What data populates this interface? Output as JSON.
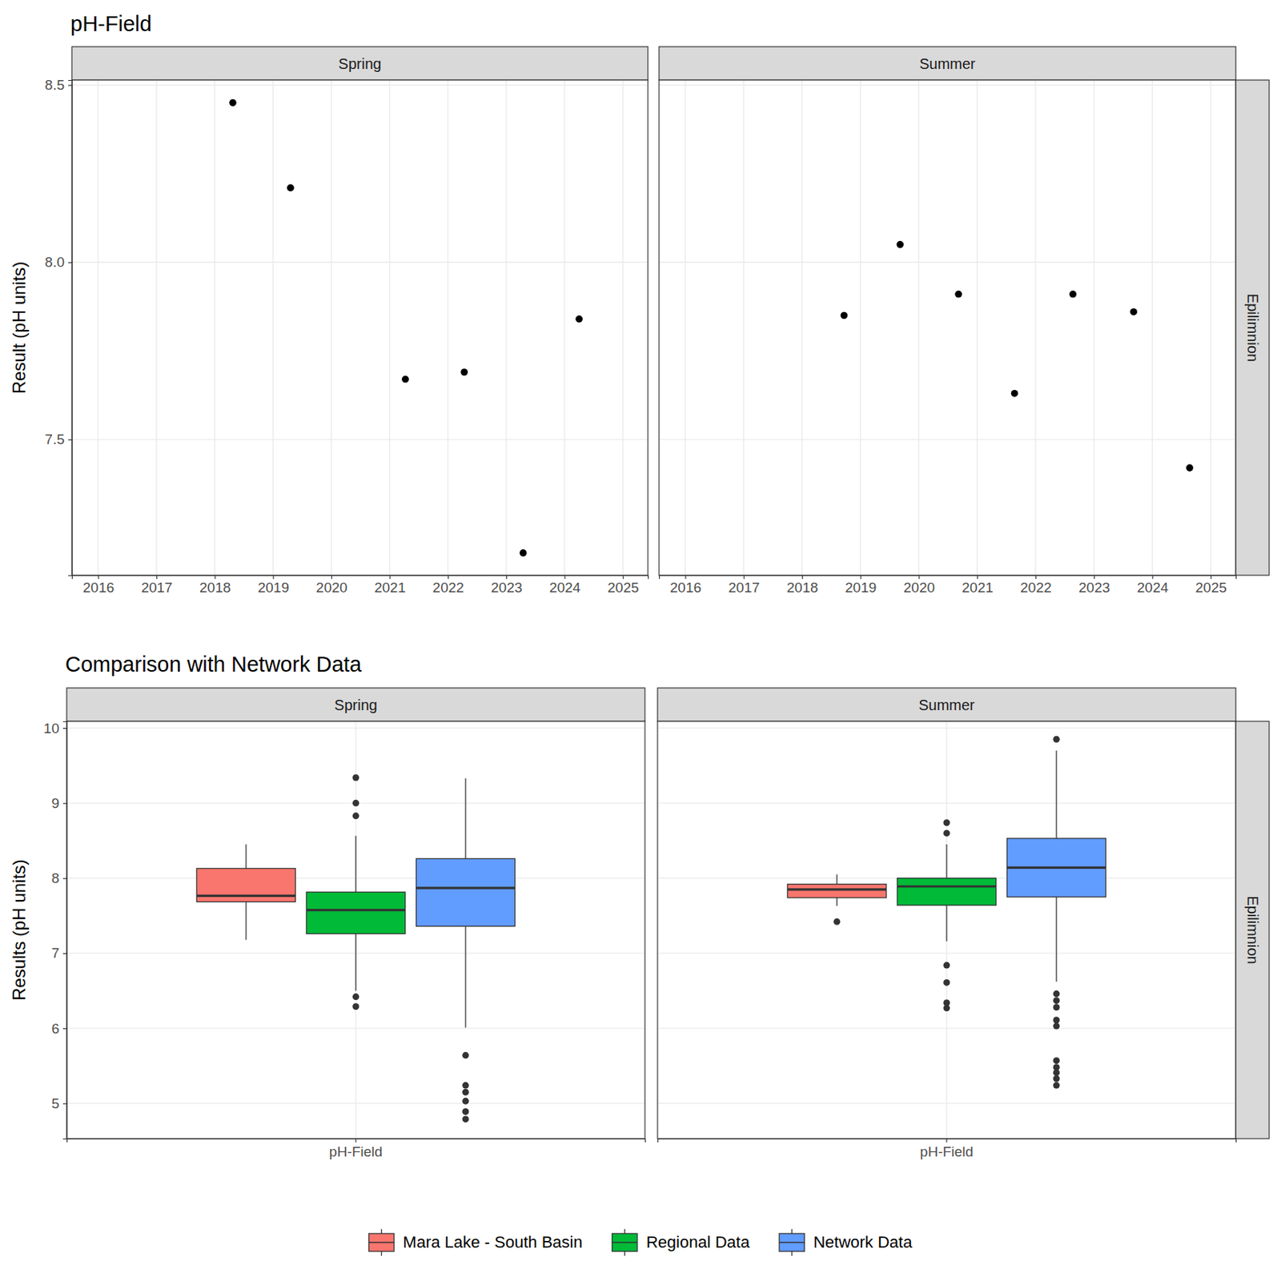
{
  "chart_data": [
    {
      "type": "scatter",
      "title": "pH-Field",
      "y_label": "Result (pH units)",
      "strip": "Epilimnion",
      "color": "#000000",
      "marker": "circle",
      "grid": true,
      "xlim": [
        2015.55,
        2025.43
      ],
      "xticks": [
        2016,
        2017,
        2018,
        2019,
        2020,
        2021,
        2022,
        2023,
        2024,
        2025
      ],
      "ylim": [
        7.117,
        8.514
      ],
      "yticks": [
        7.5,
        {
          "value": 8,
          "label": "8.0"
        },
        8.5
      ],
      "panels": [
        {
          "name": "Spring",
          "x": [
            2018.31,
            2019.3,
            2021.27,
            2022.28,
            2023.29,
            2024.25
          ],
          "values": [
            8.45,
            8.21,
            7.67,
            7.69,
            7.18,
            7.84
          ]
        },
        {
          "name": "Summer",
          "x": [
            2018.72,
            2019.68,
            2020.68,
            2021.64,
            2022.64,
            2023.68,
            2024.64
          ],
          "values": [
            7.85,
            8.05,
            7.91,
            7.63,
            7.91,
            7.86,
            7.42
          ]
        }
      ]
    },
    {
      "type": "box",
      "title": "Comparison with Network Data",
      "y_label": "Results (pH units)",
      "strip": "Epilimnion",
      "grid": true,
      "legend": "bottom",
      "categories": [
        "pH-Field"
      ],
      "ylim": [
        4.53,
        10.09
      ],
      "yticks": [
        5,
        6,
        7,
        8,
        9,
        10
      ],
      "series": [
        {
          "name": "Mara Lake - South Basin",
          "color": "#F8766D"
        },
        {
          "name": "Regional Data",
          "color": "#00BA38"
        },
        {
          "name": "Network Data",
          "color": "#619CFF"
        }
      ],
      "panels": [
        {
          "name": "Spring",
          "boxes": [
            {
              "whisker_low": 7.18,
              "q1": 7.685,
              "median": 7.765,
              "q3": 8.13,
              "whisker_high": 8.45,
              "outliers": []
            },
            {
              "whisker_low": 6.5,
              "q1": 7.26,
              "median": 7.575,
              "q3": 7.815,
              "whisker_high": 8.565,
              "outliers": [
                9.34,
                9.0,
                8.83,
                6.42,
                6.29
              ]
            },
            {
              "whisker_low": 6.01,
              "q1": 7.36,
              "median": 7.87,
              "q3": 8.26,
              "whisker_high": 9.33,
              "outliers": [
                5.64,
                5.24,
                5.15,
                5.03,
                4.89,
                4.79
              ]
            }
          ]
        },
        {
          "name": "Summer",
          "boxes": [
            {
              "whisker_low": 7.63,
              "q1": 7.74,
              "median": 7.85,
              "q3": 7.92,
              "whisker_high": 8.05,
              "outliers": [
                7.42
              ]
            },
            {
              "whisker_low": 7.16,
              "q1": 7.64,
              "median": 7.89,
              "q3": 8.0,
              "whisker_high": 8.45,
              "outliers": [
                8.74,
                8.6,
                6.84,
                6.61,
                6.34,
                6.27
              ]
            },
            {
              "whisker_low": 6.62,
              "q1": 7.75,
              "median": 8.14,
              "q3": 8.53,
              "whisker_high": 9.7,
              "outliers": [
                9.85,
                6.46,
                6.37,
                6.28,
                6.11,
                6.03,
                5.57,
                5.48,
                5.41,
                5.33,
                5.24
              ]
            }
          ]
        }
      ]
    }
  ]
}
